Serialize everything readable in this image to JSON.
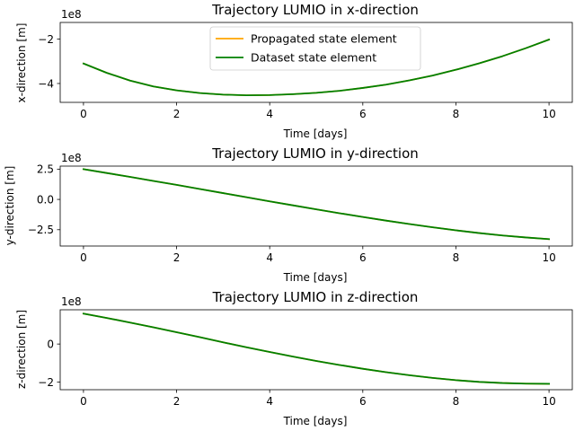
{
  "chart_data": [
    {
      "type": "line",
      "title": "Trajectory LUMIO in x-direction",
      "xlabel": "Time [days]",
      "ylabel": "x-direction [m]",
      "offset_label": "1e8",
      "xlim": [
        -0.5,
        10.5
      ],
      "ylim": [
        -4.85,
        -1.25
      ],
      "xticks": [
        0,
        2,
        4,
        6,
        8,
        10
      ],
      "yticks": [
        -4,
        -2
      ],
      "legend": {
        "location": "upper-center",
        "entries": [
          "Propagated state element",
          "Dataset state element"
        ]
      },
      "grid": false,
      "x": [
        0,
        0.5,
        1,
        1.5,
        2,
        2.5,
        3,
        3.5,
        4,
        4.5,
        5,
        5.5,
        6,
        6.5,
        7,
        7.5,
        8,
        8.5,
        9,
        9.5,
        10
      ],
      "series": [
        {
          "name": "Propagated state element",
          "color": "#ffa500",
          "values": [
            -3.1,
            -3.52,
            -3.87,
            -4.13,
            -4.31,
            -4.43,
            -4.5,
            -4.53,
            -4.52,
            -4.48,
            -4.42,
            -4.33,
            -4.2,
            -4.05,
            -3.86,
            -3.64,
            -3.38,
            -3.09,
            -2.77,
            -2.41,
            -2.02
          ]
        },
        {
          "name": "Dataset state element",
          "color": "#008000",
          "values": [
            -3.1,
            -3.52,
            -3.87,
            -4.13,
            -4.31,
            -4.43,
            -4.5,
            -4.53,
            -4.52,
            -4.48,
            -4.42,
            -4.33,
            -4.2,
            -4.05,
            -3.86,
            -3.64,
            -3.38,
            -3.09,
            -2.77,
            -2.41,
            -2.02
          ]
        }
      ]
    },
    {
      "type": "line",
      "title": "Trajectory LUMIO in y-direction",
      "xlabel": "Time [days]",
      "ylabel": "y-direction [m]",
      "offset_label": "1e8",
      "xlim": [
        -0.5,
        10.5
      ],
      "ylim": [
        -3.85,
        2.75
      ],
      "xticks": [
        0,
        2,
        4,
        6,
        8,
        10
      ],
      "yticks": [
        -2.5,
        0.0,
        2.5
      ],
      "ytick_labels": [
        "−2.5",
        "0.0",
        "2.5"
      ],
      "grid": false,
      "x": [
        0,
        0.5,
        1,
        1.5,
        2,
        2.5,
        3,
        3.5,
        4,
        4.5,
        5,
        5.5,
        6,
        6.5,
        7,
        7.5,
        8,
        8.5,
        9,
        9.5,
        10
      ],
      "series": [
        {
          "name": "Propagated state element",
          "color": "#ffa500",
          "values": [
            2.5,
            2.18,
            1.86,
            1.53,
            1.2,
            0.86,
            0.52,
            0.18,
            -0.16,
            -0.49,
            -0.82,
            -1.14,
            -1.45,
            -1.75,
            -2.03,
            -2.3,
            -2.55,
            -2.78,
            -2.98,
            -3.14,
            -3.28
          ]
        },
        {
          "name": "Dataset state element",
          "color": "#008000",
          "values": [
            2.5,
            2.18,
            1.86,
            1.53,
            1.2,
            0.86,
            0.52,
            0.18,
            -0.16,
            -0.49,
            -0.82,
            -1.14,
            -1.45,
            -1.75,
            -2.03,
            -2.3,
            -2.55,
            -2.78,
            -2.98,
            -3.14,
            -3.28
          ]
        }
      ]
    },
    {
      "type": "line",
      "title": "Trajectory LUMIO in z-direction",
      "xlabel": "Time [days]",
      "ylabel": "z-direction [m]",
      "offset_label": "1e8",
      "xlim": [
        -0.5,
        10.5
      ],
      "ylim": [
        -2.4,
        1.8
      ],
      "xticks": [
        0,
        2,
        4,
        6,
        8,
        10
      ],
      "yticks": [
        -2,
        0
      ],
      "grid": false,
      "x": [
        0,
        0.5,
        1,
        1.5,
        2,
        2.5,
        3,
        3.5,
        4,
        4.5,
        5,
        5.5,
        6,
        6.5,
        7,
        7.5,
        8,
        8.5,
        9,
        9.5,
        10
      ],
      "series": [
        {
          "name": "Propagated state element",
          "color": "#ffa500",
          "values": [
            1.6,
            1.37,
            1.13,
            0.88,
            0.62,
            0.36,
            0.09,
            -0.17,
            -0.42,
            -0.66,
            -0.89,
            -1.1,
            -1.3,
            -1.48,
            -1.64,
            -1.78,
            -1.9,
            -1.99,
            -2.05,
            -2.08,
            -2.09
          ]
        },
        {
          "name": "Dataset state element",
          "color": "#008000",
          "values": [
            1.6,
            1.37,
            1.13,
            0.88,
            0.62,
            0.36,
            0.09,
            -0.17,
            -0.42,
            -0.66,
            -0.89,
            -1.1,
            -1.3,
            -1.48,
            -1.64,
            -1.78,
            -1.9,
            -1.99,
            -2.05,
            -2.08,
            -2.09
          ]
        }
      ]
    }
  ]
}
